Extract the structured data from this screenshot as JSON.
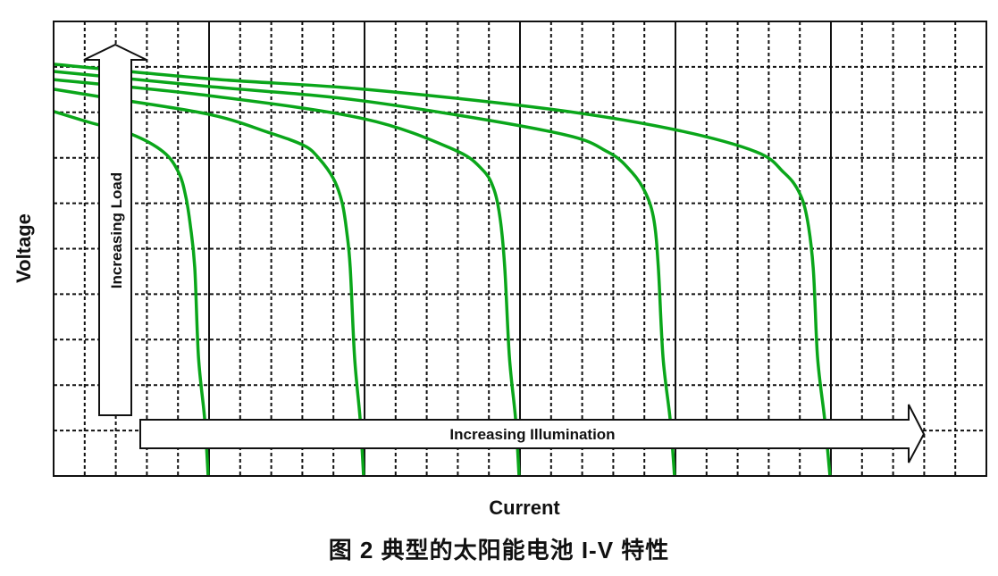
{
  "chart_data": {
    "type": "line",
    "title": "",
    "xlabel": "Current",
    "ylabel": "Voltage",
    "xlim": [
      0,
      30
    ],
    "ylim": [
      0,
      10
    ],
    "grid": {
      "minor_x_step": 1,
      "major_x_step": 5,
      "y_step": 1,
      "minor_style": "dashed",
      "major_style": "solid"
    },
    "tick_labels": false,
    "line_color": "#0aa61a",
    "annotations": [
      {
        "text": "Increasing Load",
        "direction": "up"
      },
      {
        "text": "Increasing Illumination",
        "direction": "right"
      }
    ],
    "series": [
      {
        "points": [
          [
            0,
            8.02
          ],
          [
            1.15,
            7.78
          ],
          [
            2.5,
            7.52
          ],
          [
            3.53,
            7.13
          ],
          [
            4.02,
            6.68
          ],
          [
            4.25,
            6.15
          ],
          [
            4.4,
            5.5
          ],
          [
            4.54,
            4.58
          ],
          [
            4.66,
            2.61
          ],
          [
            4.86,
            1.24
          ],
          [
            4.97,
            0
          ]
        ]
      },
      {
        "points": [
          [
            0,
            8.51
          ],
          [
            1.44,
            8.35
          ],
          [
            4.97,
            7.96
          ],
          [
            6.9,
            7.56
          ],
          [
            8.05,
            7.27
          ],
          [
            8.53,
            6.99
          ],
          [
            9.0,
            6.54
          ],
          [
            9.28,
            6.01
          ],
          [
            9.43,
            5.36
          ],
          [
            9.54,
            4.58
          ],
          [
            9.68,
            2.61
          ],
          [
            9.86,
            1.24
          ],
          [
            9.97,
            0
          ]
        ]
      },
      {
        "points": [
          [
            0,
            8.72
          ],
          [
            4.97,
            8.37
          ],
          [
            9.97,
            7.86
          ],
          [
            12.84,
            7.19
          ],
          [
            13.79,
            6.74
          ],
          [
            14.17,
            6.29
          ],
          [
            14.37,
            5.62
          ],
          [
            14.51,
            4.58
          ],
          [
            14.66,
            2.61
          ],
          [
            14.86,
            1.24
          ],
          [
            14.97,
            0
          ]
        ]
      },
      {
        "points": [
          [
            0,
            8.9
          ],
          [
            4.97,
            8.57
          ],
          [
            9.97,
            8.25
          ],
          [
            16.09,
            7.56
          ],
          [
            17.82,
            7.13
          ],
          [
            18.6,
            6.68
          ],
          [
            19.05,
            6.21
          ],
          [
            19.31,
            5.62
          ],
          [
            19.45,
            4.58
          ],
          [
            19.6,
            2.61
          ],
          [
            19.83,
            1.24
          ],
          [
            19.97,
            0
          ]
        ]
      },
      {
        "points": [
          [
            0,
            9.06
          ],
          [
            4.97,
            8.74
          ],
          [
            9.97,
            8.51
          ],
          [
            16.09,
            8.06
          ],
          [
            19.97,
            7.62
          ],
          [
            22.6,
            7.13
          ],
          [
            23.48,
            6.68
          ],
          [
            23.94,
            6.29
          ],
          [
            24.22,
            5.72
          ],
          [
            24.43,
            4.58
          ],
          [
            24.57,
            2.61
          ],
          [
            24.8,
            1.24
          ],
          [
            24.97,
            0
          ]
        ]
      }
    ]
  },
  "caption": "图 2 典型的太阳能电池 I-V 特性"
}
